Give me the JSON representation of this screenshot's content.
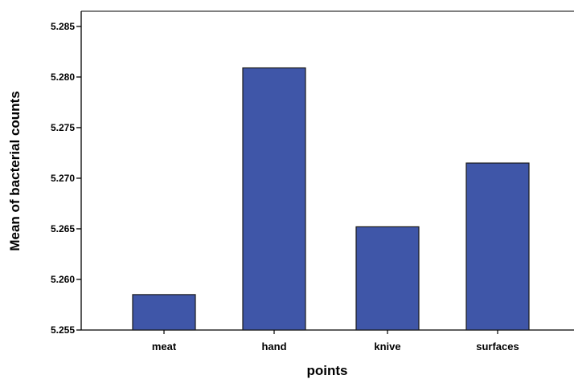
{
  "chart_data": {
    "type": "bar",
    "categories": [
      "meat",
      "hand",
      "knive",
      "surfaces"
    ],
    "values": [
      5.2585,
      5.2809,
      5.2652,
      5.2715
    ],
    "xlabel": "points",
    "ylabel": "Mean of bacterial counts",
    "ylim": [
      5.255,
      5.2865
    ],
    "yticks": [
      "5.255",
      "5.260",
      "5.265",
      "5.270",
      "5.275",
      "5.280",
      "5.285"
    ],
    "grid": false,
    "colors": {
      "bar": "#3f56a8",
      "bar_stroke": "#1a1a1a",
      "axis": "#000000"
    }
  }
}
